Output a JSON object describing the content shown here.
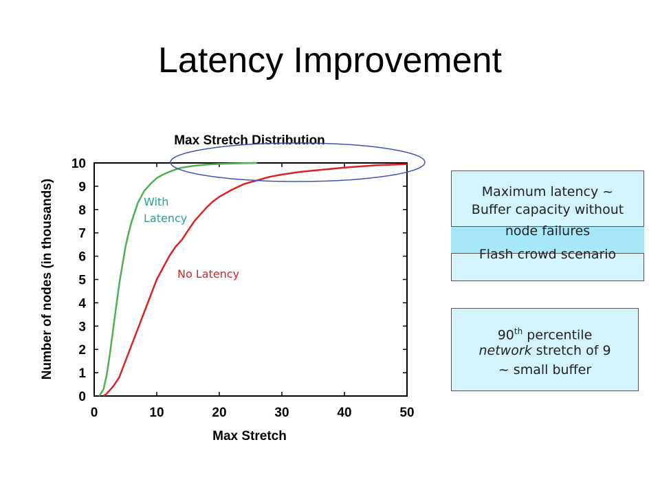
{
  "slide": {
    "title": "Latency Improvement"
  },
  "chart_data": {
    "type": "line",
    "title": "Max Stretch Distribution",
    "xlabel": "Max Stretch",
    "ylabel": "Number of nodes (in thousands)",
    "xlim": [
      0,
      50
    ],
    "ylim": [
      0,
      10
    ],
    "xticks": [
      "0",
      "10",
      "20",
      "30",
      "40",
      "50"
    ],
    "yticks": [
      "0",
      "1",
      "2",
      "3",
      "4",
      "5",
      "6",
      "7",
      "8",
      "9",
      "10"
    ],
    "grid": false,
    "series": [
      {
        "name": "With Latency",
        "color": "#4caf50",
        "x": [
          0.8,
          1.5,
          2.0,
          2.5,
          3.0,
          3.5,
          4.0,
          4.5,
          5.0,
          5.5,
          6.0,
          6.5,
          7.0,
          8.0,
          9.0,
          10.0,
          11.0,
          12.0,
          13.0,
          14.0,
          16.0,
          18.0,
          20.0,
          22.0,
          24.0,
          26.0
        ],
        "y": [
          0.0,
          0.3,
          0.9,
          1.8,
          2.8,
          3.8,
          4.8,
          5.6,
          6.4,
          7.0,
          7.5,
          7.9,
          8.3,
          8.8,
          9.1,
          9.35,
          9.5,
          9.62,
          9.72,
          9.8,
          9.88,
          9.93,
          9.96,
          9.98,
          9.99,
          10.0
        ]
      },
      {
        "name": "No Latency",
        "color": "#e02020",
        "x": [
          1.5,
          2.0,
          3.0,
          4.0,
          5.0,
          6.0,
          7.0,
          8.0,
          9.0,
          10.0,
          11.0,
          12.0,
          13.0,
          14.0,
          15.0,
          16.0,
          17.0,
          18.0,
          19.0,
          20.0,
          22.0,
          24.0,
          26.0,
          28.0,
          30.0,
          33.0,
          36.0,
          40.0,
          45.0,
          50.0
        ],
        "y": [
          0.0,
          0.1,
          0.4,
          0.8,
          1.5,
          2.2,
          2.9,
          3.6,
          4.3,
          5.0,
          5.5,
          6.0,
          6.4,
          6.7,
          7.1,
          7.5,
          7.8,
          8.1,
          8.35,
          8.55,
          8.85,
          9.1,
          9.25,
          9.4,
          9.5,
          9.62,
          9.7,
          9.8,
          9.9,
          9.95
        ]
      }
    ],
    "annotations": [
      {
        "id": "with",
        "lines": [
          "With",
          "Latency"
        ],
        "color": "#2a9d8f"
      },
      {
        "id": "no",
        "lines": [
          "No Latency"
        ],
        "color": "#e02020"
      }
    ],
    "highlight_ellipse_color": "#3f51b5"
  },
  "callouts": {
    "box1": {
      "line1": "Maximum latency ~",
      "line2": "Buffer capacity without",
      "line3": "node failures",
      "line4": "Flash crowd scenario"
    },
    "box2": {
      "line1_prefix": "90",
      "line1_sup": "th",
      "line1_suffix": " percentile",
      "line2_italic": "network",
      "line2_rest": " stretch of 9",
      "line3": "~ small buffer"
    }
  }
}
